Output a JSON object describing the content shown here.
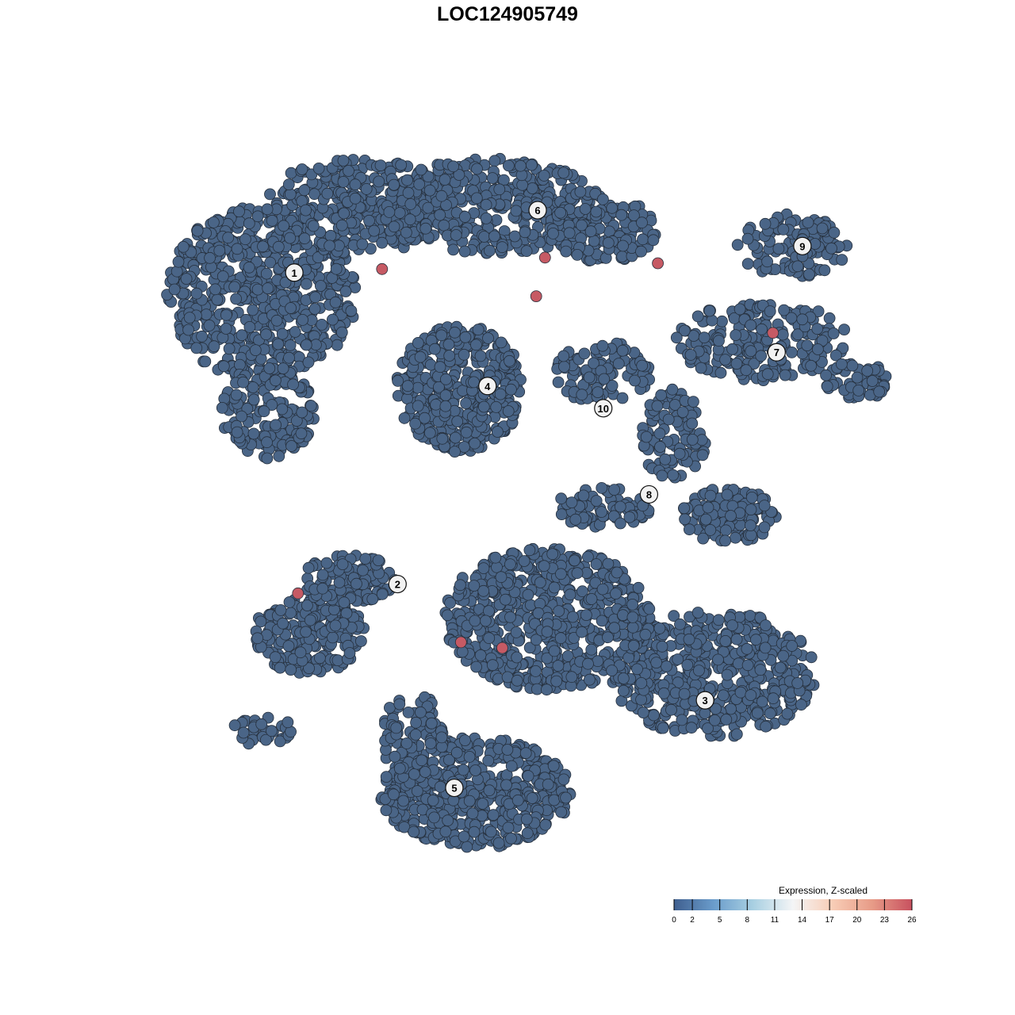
{
  "chart_data": {
    "type": "scatter",
    "title": "LOC124905749",
    "xlabel": "",
    "ylabel": "",
    "grid": false,
    "axes_visible": false,
    "background_point_value": 0,
    "clusters": [
      {
        "label": "1",
        "x": -31.6,
        "y": 32.4
      },
      {
        "label": "2",
        "x": -17.6,
        "y": -11.0
      },
      {
        "label": "3",
        "x": 24.1,
        "y": -27.2
      },
      {
        "label": "4",
        "x": -5.4,
        "y": 16.6
      },
      {
        "label": "5",
        "x": -9.9,
        "y": -39.4
      },
      {
        "label": "6",
        "x": 1.4,
        "y": 41.1
      },
      {
        "label": "7",
        "x": 33.8,
        "y": 21.3
      },
      {
        "label": "8",
        "x": 16.5,
        "y": 1.5
      },
      {
        "label": "9",
        "x": 37.3,
        "y": 36.1
      },
      {
        "label": "10",
        "x": 10.3,
        "y": 13.5
      }
    ],
    "high_expression_points": [
      {
        "x": -19.7,
        "y": 32.9,
        "value": 26
      },
      {
        "x": 2.4,
        "y": 34.5,
        "value": 26
      },
      {
        "x": 1.2,
        "y": 29.1,
        "value": 26
      },
      {
        "x": 17.7,
        "y": 33.7,
        "value": 26
      },
      {
        "x": 33.3,
        "y": 24.0,
        "value": 26
      },
      {
        "x": -31.1,
        "y": -12.3,
        "value": 26
      },
      {
        "x": -9.0,
        "y": -19.1,
        "value": 26
      },
      {
        "x": -3.4,
        "y": -19.9,
        "value": 26
      }
    ],
    "legend": {
      "title": "Expression, Z-scaled",
      "position": "bottom-right",
      "ticks": [
        "0",
        "2",
        "5",
        "8",
        "11",
        "14",
        "17",
        "20",
        "23",
        "26"
      ],
      "range": [
        0,
        26
      ],
      "colors": [
        "#3f5f8f",
        "#6a9ccb",
        "#a9d0e2",
        "#f4f5f6",
        "#f8cdb6",
        "#e79b87",
        "#c8515f"
      ]
    },
    "point_color_low": "#4a6587",
    "point_color_high": "#c65a64"
  }
}
